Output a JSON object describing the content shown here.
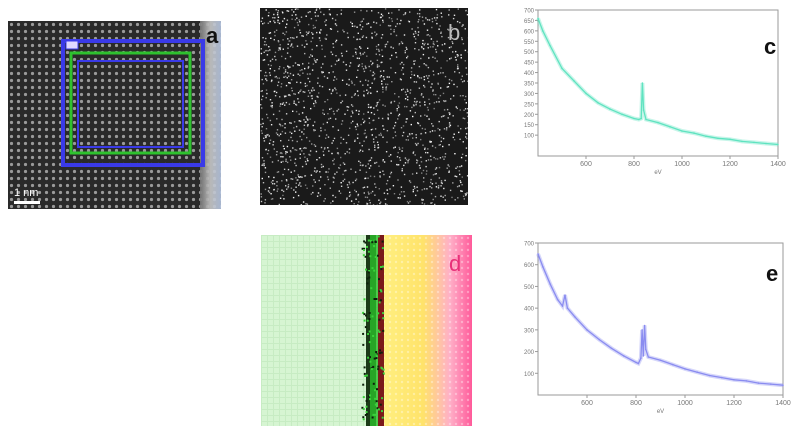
{
  "figure": {
    "panel_labels": {
      "a": "a",
      "b": "b",
      "c": "c",
      "d": "d",
      "e": "e"
    },
    "scale_bar_label": "1 nm",
    "colors": {
      "spectrum_c": "#5fe3c0",
      "spectrum_e": "#8a8cf0",
      "box_blue": "#3a3ae8",
      "box_green": "#2ec22e",
      "label_red": "#e8317a"
    }
  },
  "chart_data": [
    {
      "panel": "c",
      "type": "line",
      "xlabel": "eV",
      "ylabel": "",
      "xlim": [
        400,
        1400
      ],
      "ylim": [
        0,
        700
      ],
      "x_ticks": [
        "600",
        "800",
        "1000",
        "1200",
        "1400"
      ],
      "y_ticks": [
        "100",
        "150",
        "200",
        "250",
        "300",
        "350",
        "400",
        "450",
        "500",
        "550",
        "600",
        "650",
        "700"
      ],
      "series": [
        {
          "x": [
            400,
            420,
            450,
            500,
            550,
            600,
            650,
            700,
            750,
            800,
            820,
            830,
            835,
            840,
            850,
            900,
            950,
            1000,
            1050,
            1100,
            1150,
            1200,
            1250,
            1300,
            1350,
            1400
          ],
          "values": [
            660,
            600,
            530,
            420,
            360,
            300,
            255,
            225,
            200,
            180,
            175,
            180,
            350,
            220,
            175,
            160,
            140,
            120,
            110,
            95,
            85,
            80,
            70,
            65,
            60,
            55
          ]
        }
      ]
    },
    {
      "panel": "e",
      "type": "line",
      "xlabel": "eV",
      "ylabel": "",
      "xlim": [
        400,
        1400
      ],
      "ylim": [
        0,
        700
      ],
      "x_ticks": [
        "600",
        "800",
        "1000",
        "1200",
        "1400"
      ],
      "y_ticks": [
        "100",
        "200",
        "300",
        "400",
        "500",
        "600",
        "700"
      ],
      "series": [
        {
          "x": [
            400,
            420,
            450,
            480,
            500,
            510,
            520,
            550,
            600,
            650,
            700,
            750,
            800,
            810,
            820,
            825,
            830,
            835,
            840,
            850,
            900,
            950,
            1000,
            1050,
            1100,
            1150,
            1200,
            1250,
            1300,
            1350,
            1400
          ],
          "values": [
            650,
            590,
            510,
            440,
            410,
            460,
            400,
            360,
            300,
            255,
            215,
            180,
            150,
            145,
            170,
            300,
            180,
            320,
            210,
            175,
            160,
            140,
            120,
            105,
            90,
            80,
            70,
            65,
            55,
            50,
            45
          ]
        }
      ]
    }
  ]
}
